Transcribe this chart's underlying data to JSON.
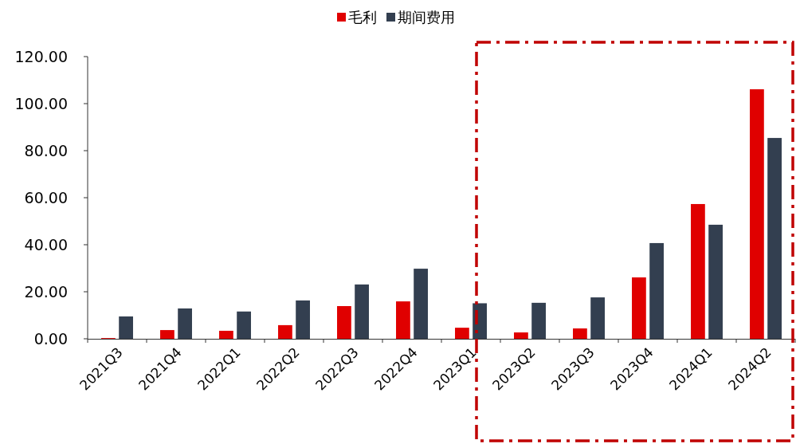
{
  "chart_data": {
    "type": "bar",
    "categories": [
      "2021Q3",
      "2021Q4",
      "2022Q1",
      "2022Q2",
      "2022Q3",
      "2022Q4",
      "2023Q1",
      "2023Q2",
      "2023Q3",
      "2023Q4",
      "2024Q1",
      "2024Q2"
    ],
    "series": [
      {
        "name": "毛利",
        "color": "#e00000",
        "values": [
          0.3,
          3.7,
          3.4,
          5.8,
          13.9,
          15.9,
          4.7,
          2.7,
          4.4,
          26.1,
          57.3,
          106.1
        ]
      },
      {
        "name": "期间费用",
        "color": "#333f50",
        "values": [
          9.5,
          12.9,
          11.6,
          16.3,
          23.1,
          29.8,
          15.1,
          15.3,
          17.6,
          40.7,
          48.5,
          85.4
        ]
      }
    ],
    "ylim": [
      0,
      120
    ],
    "yticks": [
      {
        "value": 0,
        "label": "0.00"
      },
      {
        "value": 20,
        "label": "20.00"
      },
      {
        "value": 40,
        "label": "40.00"
      },
      {
        "value": 60,
        "label": "60.00"
      },
      {
        "value": 80,
        "label": "80.00"
      },
      {
        "value": 100,
        "label": "100.00"
      },
      {
        "value": 120,
        "label": "120.00"
      }
    ],
    "legend": "top",
    "grid": false
  }
}
